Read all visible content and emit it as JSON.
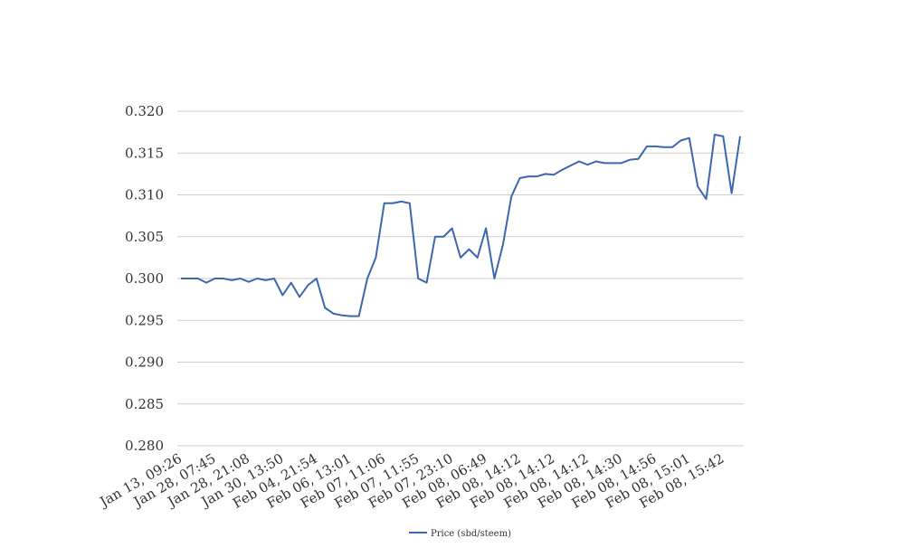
{
  "chart_data": {
    "type": "line",
    "categories": [
      "Jan 13, 09:26",
      null,
      null,
      null,
      "Jan 28, 07:45",
      null,
      null,
      null,
      "Jan 28, 21:08",
      null,
      null,
      null,
      "Jan 30, 13:50",
      null,
      null,
      null,
      "Feb 04, 21:54",
      null,
      null,
      null,
      "Feb 06, 13:01",
      null,
      null,
      null,
      "Feb 07, 11:06",
      null,
      null,
      null,
      "Feb 07, 11:55",
      null,
      null,
      null,
      "Feb 07, 23:10",
      null,
      null,
      null,
      "Feb 08, 06:49",
      null,
      null,
      null,
      "Feb 08, 14:12",
      null,
      null,
      null,
      "Feb 08, 14:12",
      null,
      null,
      null,
      "Feb 08, 14:12",
      null,
      null,
      null,
      "Feb 08, 14:30",
      null,
      null,
      null,
      "Feb 08, 14:56",
      null,
      null,
      null,
      "Feb 08, 15:01",
      null,
      null,
      null,
      "Feb 08, 15:42",
      null,
      null
    ],
    "series": [
      {
        "name": "Price (sbd/steem)",
        "color": "#3d66b0",
        "values": [
          0.3,
          0.3,
          0.3,
          0.2995,
          0.3,
          0.3,
          0.2998,
          0.3,
          0.2996,
          0.3,
          0.2998,
          0.3,
          0.298,
          0.2995,
          0.2978,
          0.2992,
          0.3,
          0.2965,
          0.2958,
          0.2956,
          0.2955,
          0.2955,
          0.3,
          0.3025,
          0.309,
          0.309,
          0.3092,
          0.309,
          0.3,
          0.2995,
          0.305,
          0.305,
          0.306,
          0.3025,
          0.3035,
          0.3025,
          0.306,
          0.3,
          0.304,
          0.3098,
          0.312,
          0.3122,
          0.3122,
          0.3125,
          0.3124,
          0.313,
          0.3135,
          0.314,
          0.3136,
          0.314,
          0.3138,
          0.3138,
          0.3138,
          0.3142,
          0.3143,
          0.3158,
          0.3158,
          0.3157,
          0.3157,
          0.3165,
          0.3168,
          0.311,
          0.3095,
          0.3172,
          0.317,
          0.3102,
          0.317
        ]
      }
    ],
    "ylim": [
      0.28,
      0.32
    ],
    "yticks": [
      {
        "value": 0.28,
        "label": "0.280"
      },
      {
        "value": 0.285,
        "label": "0.285"
      },
      {
        "value": 0.29,
        "label": "0.290"
      },
      {
        "value": 0.295,
        "label": "0.295"
      },
      {
        "value": 0.3,
        "label": "0.300"
      },
      {
        "value": 0.305,
        "label": "0.305"
      },
      {
        "value": 0.31,
        "label": "0.310"
      },
      {
        "value": 0.315,
        "label": "0.315"
      },
      {
        "value": 0.32,
        "label": "0.320"
      }
    ],
    "grid": true,
    "legend": "bottom"
  }
}
